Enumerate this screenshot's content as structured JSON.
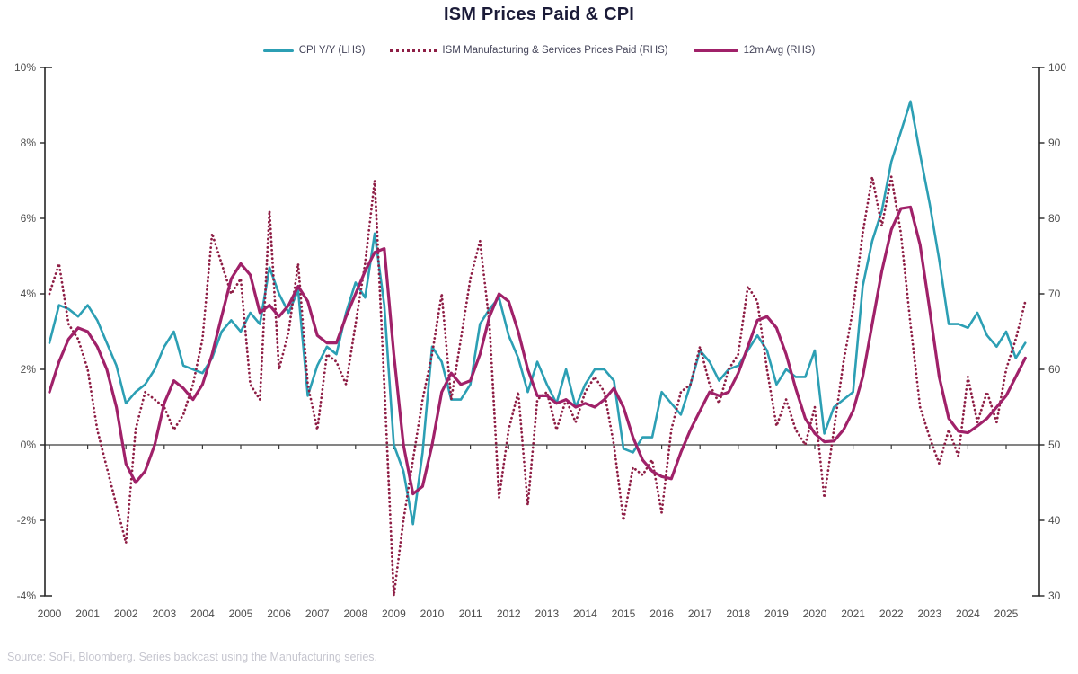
{
  "chart": {
    "title": "ISM Prices Paid & CPI",
    "source_note": "Source: SoFi, Bloomberg. Series backcast using the Manufacturing series."
  },
  "legend": [
    {
      "label": "CPI Y/Y (LHS)",
      "color": "#2C9FB4",
      "style": "solid"
    },
    {
      "label": "ISM Manufacturing & Services Prices Paid (RHS)",
      "color": "#8E1E45",
      "style": "dotted"
    },
    {
      "label": "12m Avg (RHS)",
      "color": "#A02169",
      "style": "solid"
    }
  ],
  "chart_data": {
    "type": "line",
    "title": "ISM Prices Paid & CPI",
    "x": {
      "unit": "year",
      "start": 2000,
      "step": 0.25,
      "end": 2025.5,
      "count": 103
    },
    "x_axis": {
      "labels": [
        "2000",
        "2001",
        "2002",
        "2003",
        "2004",
        "2005",
        "2006",
        "2007",
        "2008",
        "2009",
        "2010",
        "2011",
        "2012",
        "2013",
        "2014",
        "2015",
        "2016",
        "2017",
        "2018",
        "2019",
        "2020",
        "2021",
        "2022",
        "2023",
        "2024",
        "2025"
      ]
    },
    "left_axis": {
      "ticks": [
        "10%",
        "8%",
        "6%",
        "4%",
        "2%",
        "0%",
        "-2%",
        "-4%"
      ],
      "values": [
        10,
        8,
        6,
        4,
        2,
        0,
        -2,
        -4
      ],
      "min": -4,
      "max": 10
    },
    "right_axis": {
      "ticks": [
        "100",
        "90",
        "80",
        "70",
        "60",
        "50",
        "40",
        "30"
      ],
      "values": [
        100,
        90,
        80,
        70,
        60,
        50,
        40,
        30
      ],
      "min": 30,
      "max": 100
    },
    "grid": false,
    "zero_line_left_axis": 0,
    "legend_position": "top",
    "series": [
      {
        "name": "CPI Y/Y (LHS)",
        "axis": "left",
        "color": "#2C9FB4",
        "line": "solid",
        "values": [
          2.7,
          3.7,
          3.6,
          3.4,
          3.7,
          3.3,
          2.7,
          2.1,
          1.1,
          1.4,
          1.6,
          2.0,
          2.6,
          3.0,
          2.1,
          2.0,
          1.9,
          2.3,
          3.0,
          3.3,
          3.0,
          3.5,
          3.2,
          4.7,
          4.0,
          3.5,
          4.1,
          1.3,
          2.1,
          2.6,
          2.4,
          3.5,
          4.3,
          3.9,
          5.6,
          3.7,
          0.0,
          -0.7,
          -2.1,
          -0.2,
          2.6,
          2.2,
          1.2,
          1.2,
          1.6,
          3.2,
          3.6,
          3.9,
          2.9,
          2.3,
          1.4,
          2.2,
          1.6,
          1.1,
          2.0,
          1.0,
          1.6,
          2.0,
          2.0,
          1.7,
          -0.1,
          -0.2,
          0.2,
          0.2,
          1.4,
          1.1,
          0.8,
          1.6,
          2.5,
          2.2,
          1.7,
          2.0,
          2.1,
          2.5,
          2.9,
          2.5,
          1.6,
          2.0,
          1.8,
          1.8,
          2.5,
          0.3,
          1.0,
          1.2,
          1.4,
          4.2,
          5.4,
          6.2,
          7.5,
          8.3,
          9.1,
          7.7,
          6.4,
          4.9,
          3.2,
          3.2,
          3.1,
          3.5,
          2.9,
          2.6,
          3.0,
          2.3,
          2.7
        ]
      },
      {
        "name": "ISM Manufacturing & Services Prices Paid (RHS)",
        "axis": "right",
        "color": "#8E1E45",
        "line": "dotted",
        "values": [
          70,
          74,
          66,
          64,
          60,
          52,
          47,
          42,
          37,
          52,
          57,
          56,
          55,
          52,
          54,
          58,
          64,
          78,
          74,
          70,
          72,
          58,
          56,
          81,
          60,
          65,
          74,
          58,
          52,
          62,
          61,
          58,
          66,
          74,
          85,
          58,
          30,
          40,
          48,
          56,
          62,
          70,
          56,
          64,
          72,
          77,
          66,
          43,
          52,
          57,
          42,
          56,
          57,
          52,
          56,
          53,
          57,
          59,
          57,
          50,
          40,
          47,
          46,
          48,
          41,
          52,
          57,
          58,
          63,
          58,
          55.5,
          60,
          62,
          71,
          69,
          60,
          52.5,
          56,
          52,
          50,
          55,
          43,
          52,
          61,
          68,
          78,
          85.5,
          79,
          85.5,
          78,
          66,
          55,
          51,
          47.5,
          52,
          48.5,
          59,
          53,
          57,
          53,
          60,
          64,
          69
        ]
      },
      {
        "name": "12m Avg (RHS)",
        "axis": "right",
        "color": "#A02169",
        "line": "solid",
        "values": [
          57,
          61,
          64,
          65.5,
          65,
          63,
          60,
          55,
          47.5,
          45,
          46.5,
          50,
          55.5,
          58.5,
          57.5,
          56,
          58,
          62,
          67,
          72,
          74,
          72.5,
          67.5,
          68.5,
          67,
          68.5,
          71,
          69,
          64.5,
          63.5,
          63.5,
          67,
          70,
          73,
          75.5,
          76,
          62,
          50,
          43.5,
          44.5,
          50,
          57,
          59.5,
          58,
          58.5,
          62,
          67,
          70,
          69,
          65,
          60,
          56.5,
          56.5,
          55.5,
          56,
          55,
          55.5,
          55,
          56,
          57.5,
          55,
          51,
          48,
          46.5,
          45.8,
          45.5,
          49,
          52,
          54.5,
          57,
          56.5,
          57,
          59.5,
          63,
          66.5,
          67,
          65.5,
          62,
          57.5,
          53.5,
          51.5,
          50.4,
          50.5,
          52,
          54.5,
          59,
          66,
          73,
          78.5,
          81.3,
          81.5,
          76.5,
          68,
          59,
          53.5,
          51.8,
          51.6,
          52.5,
          53.5,
          55,
          56.5,
          59,
          61.5
        ]
      }
    ],
    "colors": {
      "title": "#1b1b38",
      "axis_spine": "#262626",
      "tick_label": "#4d4d4d",
      "zero_line": "#3a3a3a",
      "source_text": "#c6c6cf"
    }
  }
}
